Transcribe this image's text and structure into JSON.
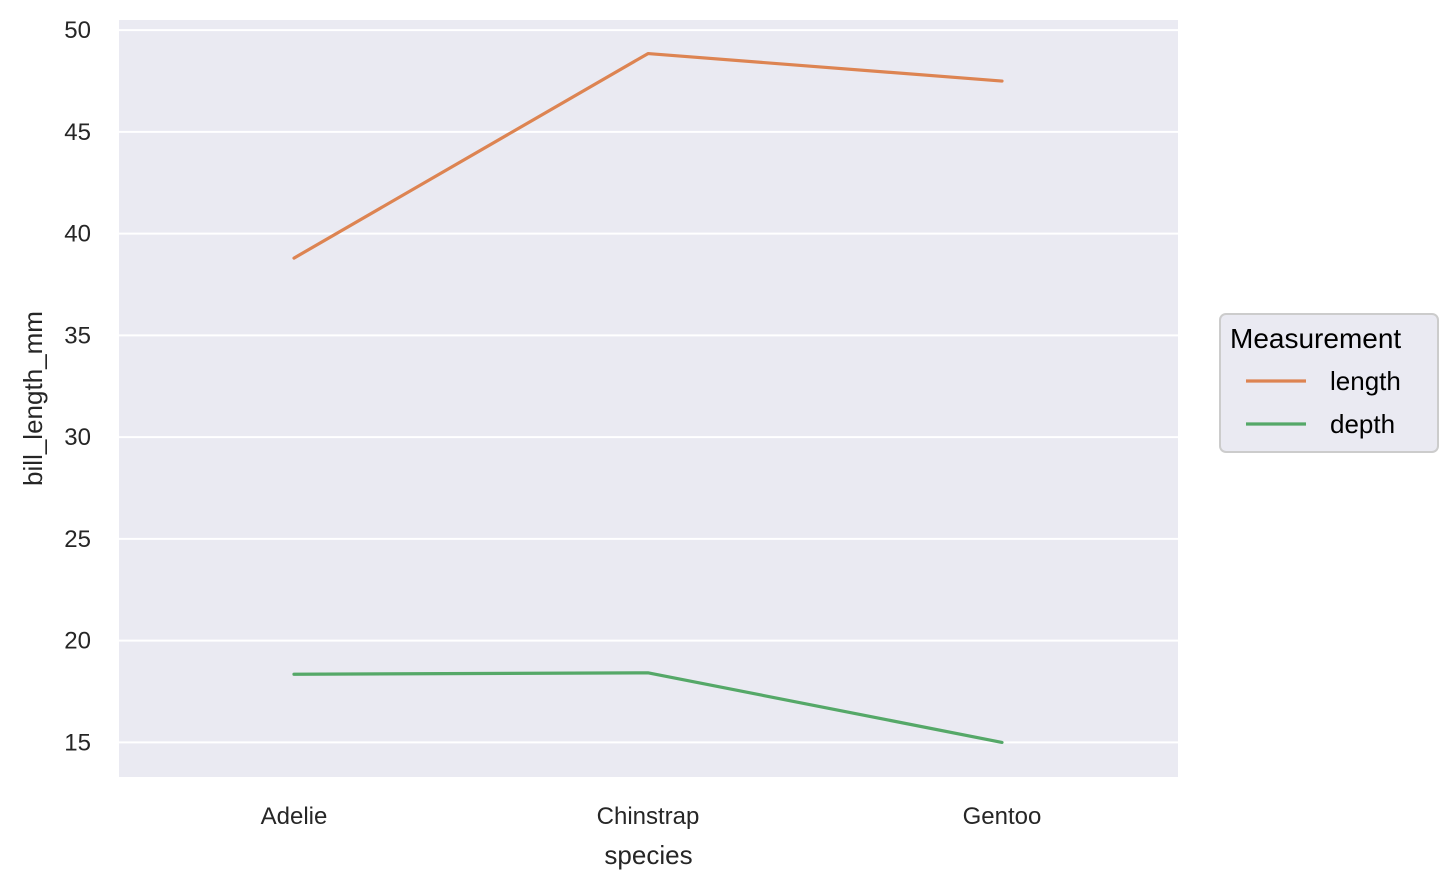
{
  "chart_data": {
    "type": "line",
    "xlabel": "species",
    "ylabel": "bill_length_mm",
    "categories": [
      "Adelie",
      "Chinstrap",
      "Gentoo"
    ],
    "ylim": [
      13.3,
      50.5
    ],
    "yticks": [
      15,
      20,
      25,
      30,
      35,
      40,
      45,
      50
    ],
    "grid": true,
    "legend": {
      "title": "Measurement",
      "position": "right"
    },
    "series": [
      {
        "name": "length",
        "color": "#dd8452",
        "values": [
          38.8,
          48.85,
          47.5
        ]
      },
      {
        "name": "depth",
        "color": "#55a868",
        "values": [
          18.35,
          18.42,
          15.0
        ]
      }
    ],
    "background_color": "#eaeaf2",
    "grid_color": "#ffffff"
  }
}
